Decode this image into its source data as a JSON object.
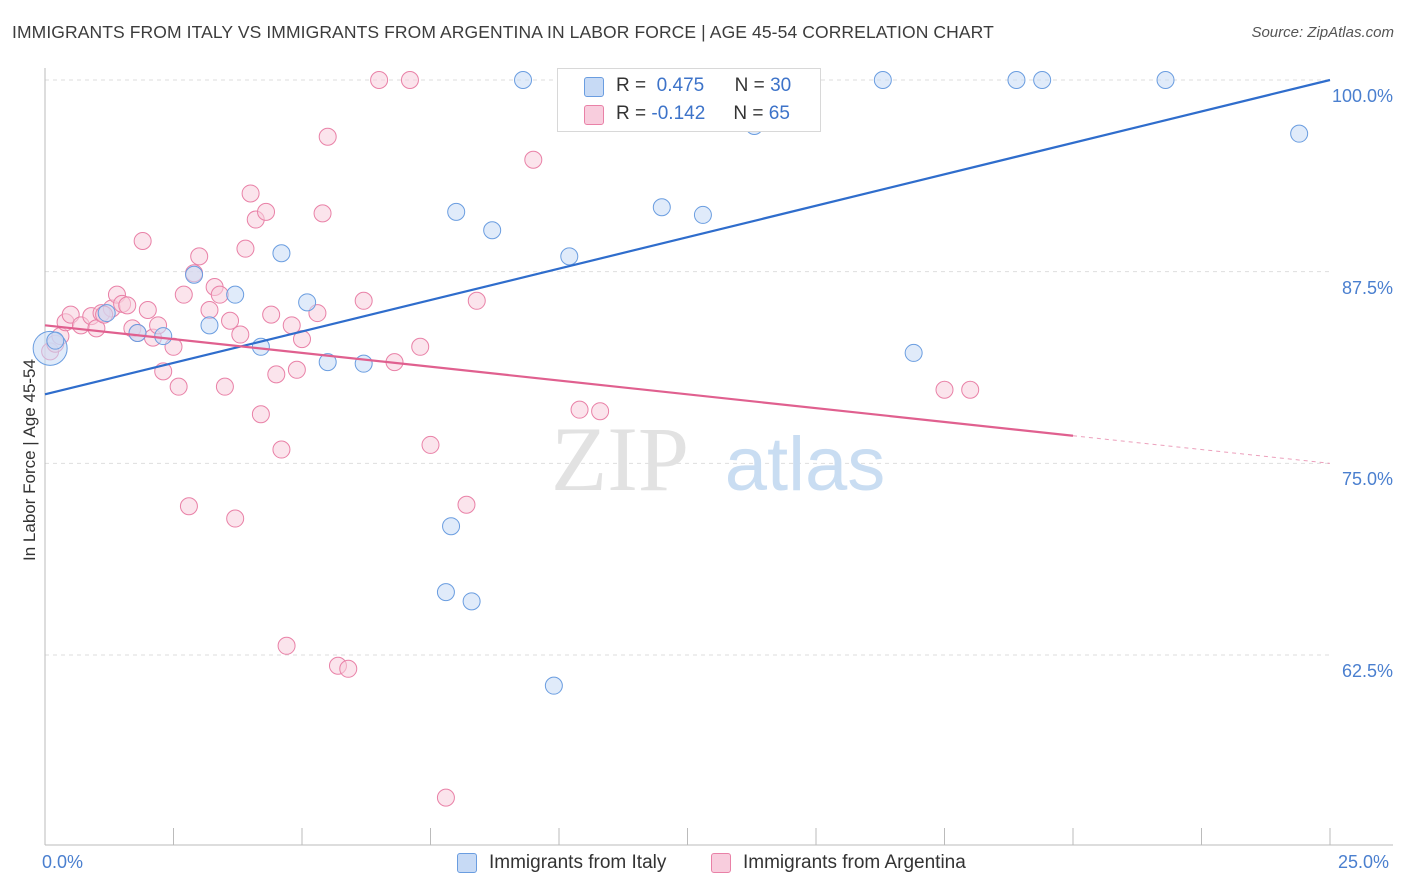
{
  "title": "IMMIGRANTS FROM ITALY VS IMMIGRANTS FROM ARGENTINA IN LABOR FORCE | AGE 45-54 CORRELATION CHART",
  "source": "Source: ZipAtlas.com",
  "watermark": {
    "zip": "ZIP",
    "atlas": "atlas"
  },
  "colors": {
    "italy": "#6a9de0",
    "italy_fill": "#c7daf5",
    "argentina": "#e981a7",
    "argentina_fill": "#f8cddd",
    "italy_line": "#2f6dcc",
    "argentina_line": "#e0608f",
    "axis_text": "#4a7fcf"
  },
  "stats": {
    "italy": {
      "r_label": "R =",
      "r": "0.475",
      "n_label": "N =",
      "n": "30"
    },
    "argentina": {
      "r_label": "R =",
      "r": "-0.142",
      "n_label": "N =",
      "n": "65"
    }
  },
  "legend": {
    "italy": "Immigrants from Italy",
    "argentina": "Immigrants from Argentina"
  },
  "chart_data": {
    "type": "scatter",
    "title": "IMMIGRANTS FROM ITALY VS IMMIGRANTS FROM ARGENTINA IN LABOR FORCE | AGE 45-54 CORRELATION CHART",
    "xlabel": "",
    "ylabel": "In Labor Force | Age 45-54",
    "xlim": [
      0,
      25
    ],
    "ylim": [
      50,
      101
    ],
    "x_tick_labels": [
      "0.0%",
      "25.0%"
    ],
    "y_ticks": [
      62.5,
      75.0,
      87.5,
      100.0
    ],
    "y_tick_labels": [
      "62.5%",
      "75.0%",
      "87.5%",
      "100.0%"
    ],
    "series": [
      {
        "name": "Immigrants from Italy",
        "points": [
          [
            0.1,
            82.5
          ],
          [
            0.2,
            83.0
          ],
          [
            1.2,
            84.8
          ],
          [
            1.8,
            83.5
          ],
          [
            2.3,
            83.3
          ],
          [
            2.9,
            87.3
          ],
          [
            3.2,
            84.0
          ],
          [
            3.7,
            86.0
          ],
          [
            4.2,
            82.6
          ],
          [
            4.6,
            88.7
          ],
          [
            5.1,
            85.5
          ],
          [
            5.5,
            81.6
          ],
          [
            6.2,
            81.5
          ],
          [
            7.8,
            66.6
          ],
          [
            7.9,
            70.9
          ],
          [
            8.0,
            91.4
          ],
          [
            8.3,
            66.0
          ],
          [
            8.7,
            90.2
          ],
          [
            9.3,
            100.0
          ],
          [
            9.9,
            60.5
          ],
          [
            10.2,
            88.5
          ],
          [
            12.0,
            91.7
          ],
          [
            12.8,
            91.2
          ],
          [
            13.8,
            97.0
          ],
          [
            16.3,
            100.0
          ],
          [
            16.9,
            82.2
          ],
          [
            18.9,
            100.0
          ],
          [
            19.4,
            100.0
          ],
          [
            21.8,
            100.0
          ],
          [
            24.4,
            96.5
          ]
        ]
      },
      {
        "name": "Immigrants from Argentina",
        "points": [
          [
            0.1,
            82.3
          ],
          [
            0.2,
            82.8
          ],
          [
            0.3,
            83.3
          ],
          [
            0.4,
            84.2
          ],
          [
            0.5,
            84.7
          ],
          [
            0.7,
            84.0
          ],
          [
            0.9,
            84.6
          ],
          [
            1.0,
            83.8
          ],
          [
            1.1,
            84.8
          ],
          [
            1.3,
            85.1
          ],
          [
            1.4,
            86.0
          ],
          [
            1.5,
            85.4
          ],
          [
            1.6,
            85.3
          ],
          [
            1.7,
            83.8
          ],
          [
            1.8,
            83.5
          ],
          [
            1.9,
            89.5
          ],
          [
            2.0,
            85.0
          ],
          [
            2.1,
            83.2
          ],
          [
            2.2,
            84.0
          ],
          [
            2.3,
            81.0
          ],
          [
            2.5,
            82.6
          ],
          [
            2.6,
            80.0
          ],
          [
            2.7,
            86.0
          ],
          [
            2.8,
            72.2
          ],
          [
            2.9,
            87.4
          ],
          [
            3.0,
            88.5
          ],
          [
            3.2,
            85.0
          ],
          [
            3.3,
            86.5
          ],
          [
            3.4,
            86.0
          ],
          [
            3.5,
            80.0
          ],
          [
            3.6,
            84.3
          ],
          [
            3.7,
            71.4
          ],
          [
            3.8,
            83.4
          ],
          [
            3.9,
            89.0
          ],
          [
            4.0,
            92.6
          ],
          [
            4.1,
            90.9
          ],
          [
            4.2,
            78.2
          ],
          [
            4.3,
            91.4
          ],
          [
            4.4,
            84.7
          ],
          [
            4.5,
            80.8
          ],
          [
            4.6,
            75.9
          ],
          [
            4.7,
            63.1
          ],
          [
            4.8,
            84.0
          ],
          [
            4.9,
            81.1
          ],
          [
            5.0,
            83.1
          ],
          [
            5.3,
            84.8
          ],
          [
            5.4,
            91.3
          ],
          [
            5.5,
            96.3
          ],
          [
            5.7,
            61.8
          ],
          [
            5.9,
            61.6
          ],
          [
            6.2,
            85.6
          ],
          [
            6.5,
            100.0
          ],
          [
            6.8,
            81.6
          ],
          [
            7.1,
            100.0
          ],
          [
            7.3,
            82.6
          ],
          [
            7.5,
            76.2
          ],
          [
            7.8,
            53.2
          ],
          [
            8.2,
            72.3
          ],
          [
            8.4,
            85.6
          ],
          [
            9.5,
            94.8
          ],
          [
            10.4,
            78.5
          ],
          [
            10.8,
            78.4
          ],
          [
            17.5,
            79.8
          ],
          [
            18.0,
            79.8
          ],
          [
            1.15,
            84.7
          ]
        ]
      }
    ],
    "trendlines": [
      {
        "name": "Immigrants from Italy",
        "x": [
          0,
          25
        ],
        "y": [
          79.5,
          100.0
        ],
        "style": "solid"
      },
      {
        "name": "Immigrants from Argentina",
        "x": [
          0,
          20
        ],
        "y": [
          84.0,
          76.8
        ],
        "style": "solid"
      },
      {
        "name": "Immigrants from Argentina extension",
        "x": [
          20,
          25
        ],
        "y": [
          76.8,
          75.0
        ],
        "style": "dashed"
      }
    ]
  }
}
